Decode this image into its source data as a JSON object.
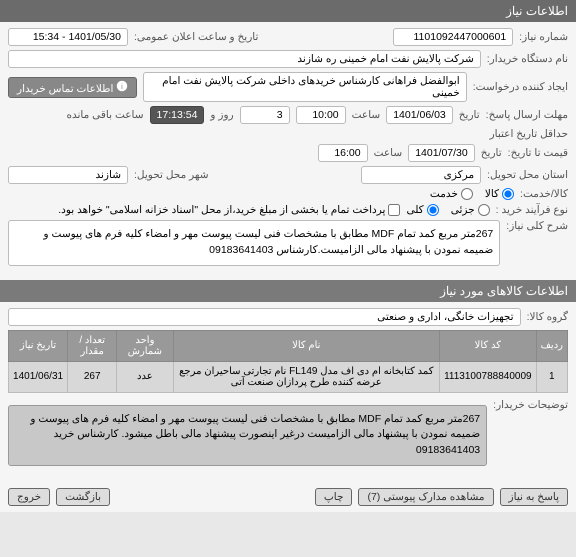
{
  "header": {
    "title": "اطلاعات نیاز"
  },
  "fields": {
    "need_no_label": "شماره نیاز:",
    "need_no": "1101092447000601",
    "pub_date_label": "تاریخ و ساعت اعلان عمومی:",
    "pub_date": "1401/05/30 - 15:34",
    "device_label": "نام دستگاه خریدار:",
    "device": "شرکت پالایش نفت امام خمینی  ره  شازند",
    "creator_label": "ایجاد کننده درخواست:",
    "creator": "ابوالفضل فراهانی کارشناس خریدهای داخلی شرکت پالایش نفت امام خمینی",
    "contact_btn": "اطلاعات تماس خریدار",
    "resp_deadline_label": "مهلت ارسال پاسخ:",
    "resp_date_label": "تاریخ",
    "resp_date": "1401/06/03",
    "resp_time_label": "ساعت",
    "resp_time": "10:00",
    "days_label": "روز و",
    "days": "3",
    "countdown": "17:13:54",
    "remain_label": "ساعت باقی مانده",
    "valid_label": "حداقل تاریخ اعتبار",
    "valid_sub": "قیمت تا تاریخ:",
    "valid_date": "1401/07/30",
    "valid_time": "16:00",
    "deliv_prov_label": "استان محل تحویل:",
    "deliv_prov": "مرکزی",
    "deliv_city_label": "شهر محل تحویل:",
    "deliv_city": "شازند",
    "goods_svc_label": "کالا/خدمت:",
    "goods": "کالا",
    "svc": "خدمت",
    "proc_label": "نوع فرآیند خرید :",
    "proc_partial": "جزئی",
    "proc_full": "کلی",
    "proc_note": "پرداخت تمام یا بخشی از مبلغ خرید،از محل \"اسناد خزانه اسلامی\" خواهد بود.",
    "desc_label": "شرح کلی نیاز:",
    "desc": "267متر مربع کمد تمام MDF مطابق با مشخصات فنی لیست پیوست مهر و امضاء کلیه فرم های پیوست و ضمیمه نمودن با پیشنهاد  مالی الزامیست.کارشناس 09183641403"
  },
  "items_header": {
    "title": "اطلاعات کالاهای مورد نیاز"
  },
  "group": {
    "label": "گروه کالا:",
    "value": "تجهیزات خانگی، اداری و صنعتی"
  },
  "table": {
    "columns": [
      "ردیف",
      "کد کالا",
      "نام کالا",
      "واحد شمارش",
      "تعداد / مقدار",
      "تاریخ نیاز"
    ],
    "rows": [
      [
        "1",
        "1113100788840009",
        "کمد کتابخانه ام دی اف مدل FL149 نام تجارتی ساحیران مرجع عرضه کننده طرح پردازان صنعت آتی",
        "عدد",
        "267",
        "1401/06/31"
      ]
    ]
  },
  "buyer_desc": {
    "label": "توضیحات خریدار:",
    "text": "267متر مربع کمد تمام MDF مطابق با مشخصات فنی لیست پیوست مهر و امضاء کلیه فرم های پیوست و ضمیمه نمودن با پیشنهاد مالی الزامیست درغیر اینصورت پیشنهاد مالی باطل میشود. کارشناس خرید 09183641403"
  },
  "footer": {
    "reply": "پاسخ به نیاز",
    "attach": "مشاهده مدارک پیوستی  (7)",
    "print": "چاپ",
    "back": "بازگشت",
    "exit": "خروج"
  },
  "colors": {
    "header_bg": "#6b6b6b",
    "field_bg": "#ffffff",
    "dark_field_bg": "#555555",
    "table_th_bg": "#999999",
    "table_td_bg": "#d8d8d8"
  }
}
